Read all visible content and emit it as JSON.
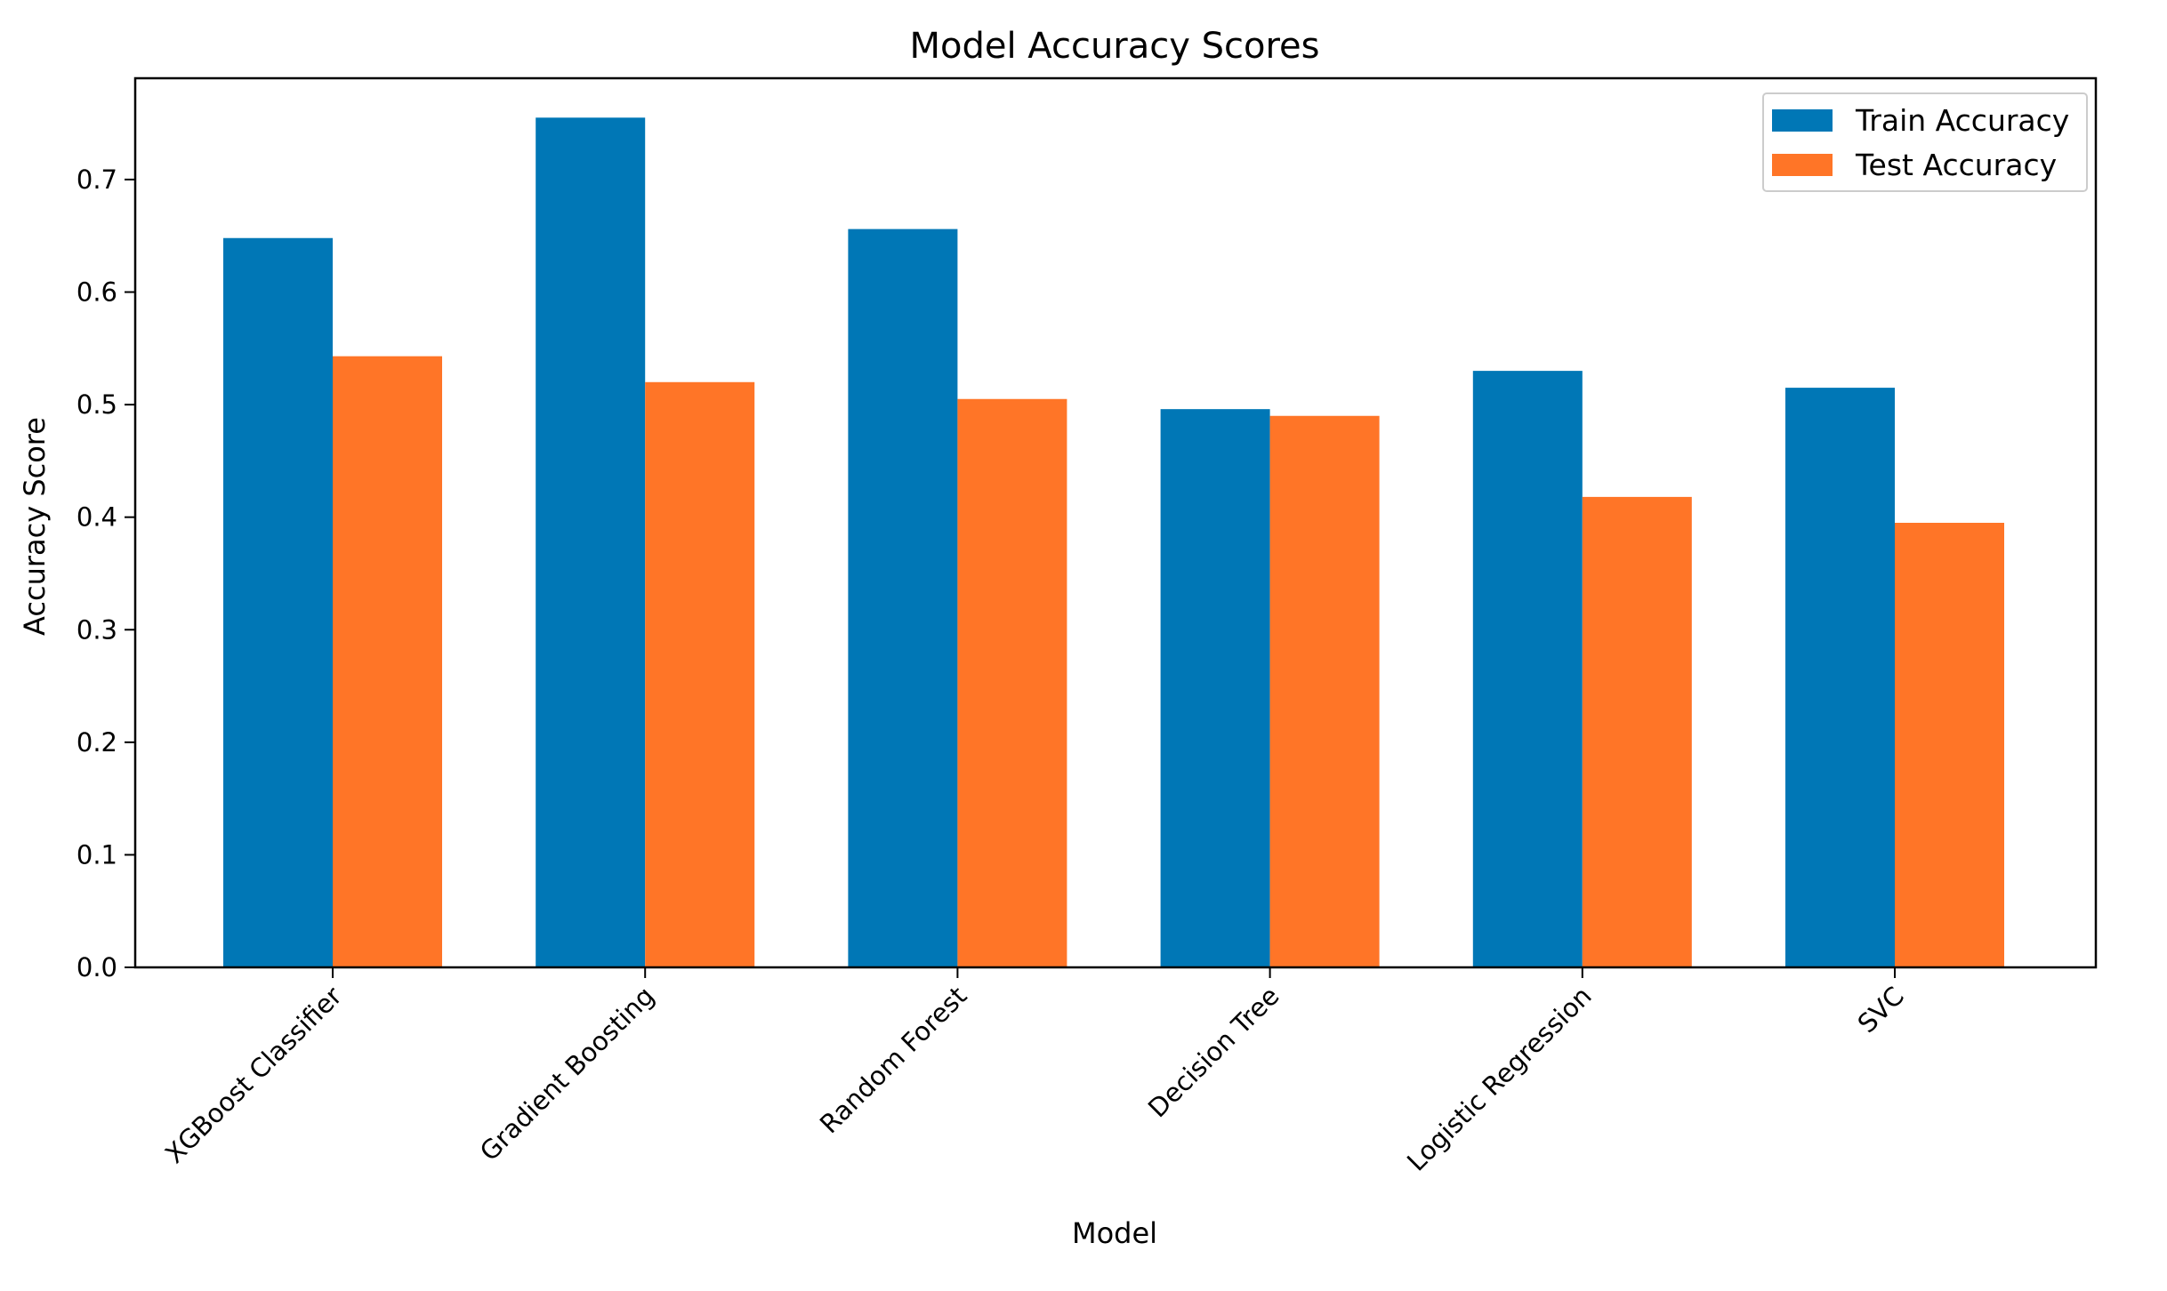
{
  "chart_data": {
    "type": "bar",
    "title": "Model Accuracy Scores",
    "xlabel": "Model",
    "ylabel": "Accuracy Score",
    "categories": [
      "XGBoost Classifier",
      "Gradient Boosting",
      "Random Forest",
      "Decision Tree",
      "Logistic Regression",
      "SVC"
    ],
    "series": [
      {
        "name": "Train Accuracy",
        "color": "#0077b6",
        "values": [
          0.648,
          0.755,
          0.656,
          0.496,
          0.53,
          0.515
        ]
      },
      {
        "name": "Test Accuracy",
        "color": "#ff7527",
        "values": [
          0.543,
          0.52,
          0.505,
          0.49,
          0.418,
          0.395
        ]
      }
    ],
    "ylim": [
      0,
      0.79
    ],
    "yticks": [
      "0.0",
      "0.1",
      "0.2",
      "0.3",
      "0.4",
      "0.5",
      "0.6",
      "0.7"
    ],
    "grid": false,
    "legend_position": "top-right"
  }
}
